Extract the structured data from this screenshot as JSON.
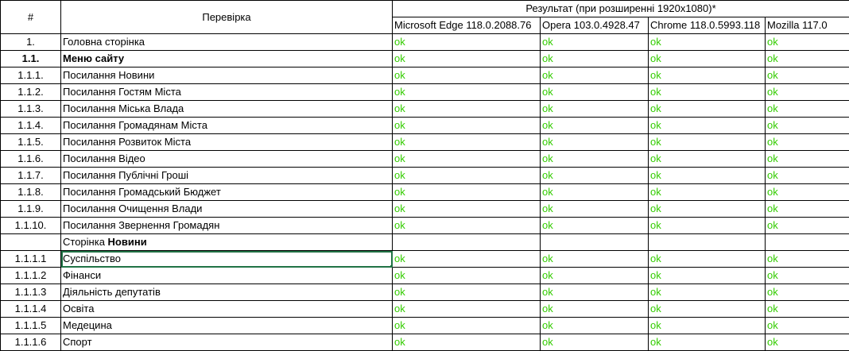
{
  "header": {
    "num": "#",
    "check": "Перевірка",
    "result": "Результат (при розширенні 1920х1080)*",
    "browsers": [
      "Microsoft Edge  118.0.2088.76",
      "Opera 103.0.4928.47",
      "Chrome 118.0.5993.118",
      "Mozilla 117.0"
    ]
  },
  "rows": [
    {
      "num": "1.",
      "label": "Головна сторінка",
      "label_bold": "",
      "results": [
        "ok",
        "ok",
        "ok",
        "ok"
      ]
    },
    {
      "num": "1.1.",
      "label": "Меню сайту",
      "label_bold": "",
      "results": [
        "ok",
        "ok",
        "ok",
        "ok"
      ]
    },
    {
      "num": "1.1.1.",
      "label": "Посилання Новини",
      "label_bold": "",
      "results": [
        "ok",
        "ok",
        "ok",
        "ok"
      ]
    },
    {
      "num": "1.1.2.",
      "label": "Посилання Гостям Міста",
      "label_bold": "",
      "results": [
        "ok",
        "ok",
        "ok",
        "ok"
      ]
    },
    {
      "num": "1.1.3.",
      "label": "Посилання Міська Влада",
      "label_bold": "",
      "results": [
        "ok",
        "ok",
        "ok",
        "ok"
      ]
    },
    {
      "num": "1.1.4.",
      "label": "Посилання Громадянам Міста",
      "label_bold": "",
      "results": [
        "ok",
        "ok",
        "ok",
        "ok"
      ]
    },
    {
      "num": "1.1.5.",
      "label": "Посилання Розвиток Міста",
      "label_bold": "",
      "results": [
        "ok",
        "ok",
        "ok",
        "ok"
      ]
    },
    {
      "num": "1.1.6.",
      "label": "Посилання Відео",
      "label_bold": "",
      "results": [
        "ok",
        "ok",
        "ok",
        "ok"
      ]
    },
    {
      "num": "1.1.7.",
      "label": "Посилання Публічні Гроші",
      "label_bold": "",
      "results": [
        "ok",
        "ok",
        "ok",
        "ok"
      ]
    },
    {
      "num": "1.1.8.",
      "label": "Посилання Громадський Бюджет",
      "label_bold": "",
      "results": [
        "ok",
        "ok",
        "ok",
        "ok"
      ]
    },
    {
      "num": "1.1.9.",
      "label": "Посилання Очищення Влади",
      "label_bold": "",
      "results": [
        "ok",
        "ok",
        "ok",
        "ok"
      ]
    },
    {
      "num": "1.1.10.",
      "label": "Посилання Звернення Громадян",
      "label_bold": "",
      "results": [
        "ok",
        "ok",
        "ok",
        "ok"
      ]
    },
    {
      "num": "",
      "label": "Сторінка ",
      "label_bold": "Новини",
      "results": [
        "",
        "",
        "",
        ""
      ]
    },
    {
      "num": "1.1.1.1",
      "label": "Суспільство",
      "label_bold": "",
      "results": [
        "ok",
        "ok",
        "ok",
        "ok"
      ]
    },
    {
      "num": "1.1.1.2",
      "label": "Фінанси",
      "label_bold": "",
      "results": [
        "ok",
        "ok",
        "ok",
        "ok"
      ]
    },
    {
      "num": "1.1.1.3",
      "label": "Діяльність депутатів",
      "label_bold": "",
      "results": [
        "ok",
        "ok",
        "ok",
        "ok"
      ]
    },
    {
      "num": "1.1.1.4",
      "label": "Освіта",
      "label_bold": "",
      "results": [
        "ok",
        "ok",
        "ok",
        "ok"
      ]
    },
    {
      "num": "1.1.1.5",
      "label": "Медецина",
      "label_bold": "",
      "results": [
        "ok",
        "ok",
        "ok",
        "ok"
      ]
    },
    {
      "num": "1.1.1.6",
      "label": "Спорт",
      "label_bold": "",
      "results": [
        "ok",
        "ok",
        "ok",
        "ok"
      ]
    }
  ],
  "colors": {
    "ok_text": "#33cc00",
    "grid": "#000000",
    "selection": "#217346"
  }
}
